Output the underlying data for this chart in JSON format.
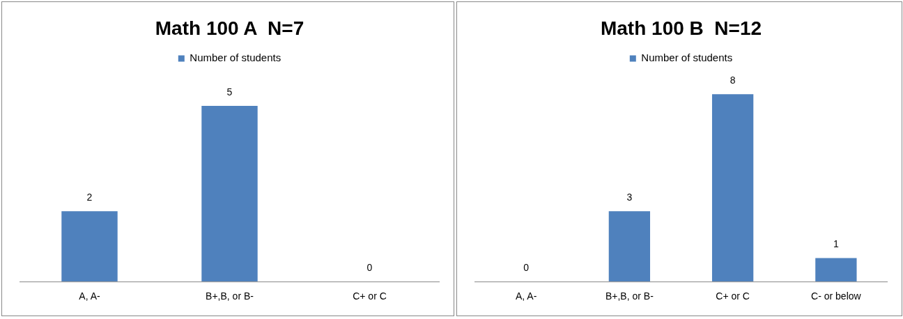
{
  "chart_data": [
    {
      "type": "bar",
      "title": "Math 100 A  N=7",
      "categories": [
        "A, A-",
        "B+,B, or B-",
        "C+ or C"
      ],
      "series": [
        {
          "name": "Number of students",
          "color": "#4f81bd",
          "values": [
            2,
            5,
            0
          ]
        }
      ],
      "tick_labels": "x",
      "data_labels": true,
      "legend": "top",
      "grid": false
    },
    {
      "type": "bar",
      "title": "Math 100 B  N=12",
      "categories": [
        "A, A-",
        "B+,B, or B-",
        "C+ or C",
        "C- or below"
      ],
      "series": [
        {
          "name": "Number of students",
          "color": "#4f81bd",
          "values": [
            0,
            3,
            8,
            1
          ]
        }
      ],
      "tick_labels": "x",
      "data_labels": true,
      "legend": "top",
      "grid": false
    }
  ]
}
